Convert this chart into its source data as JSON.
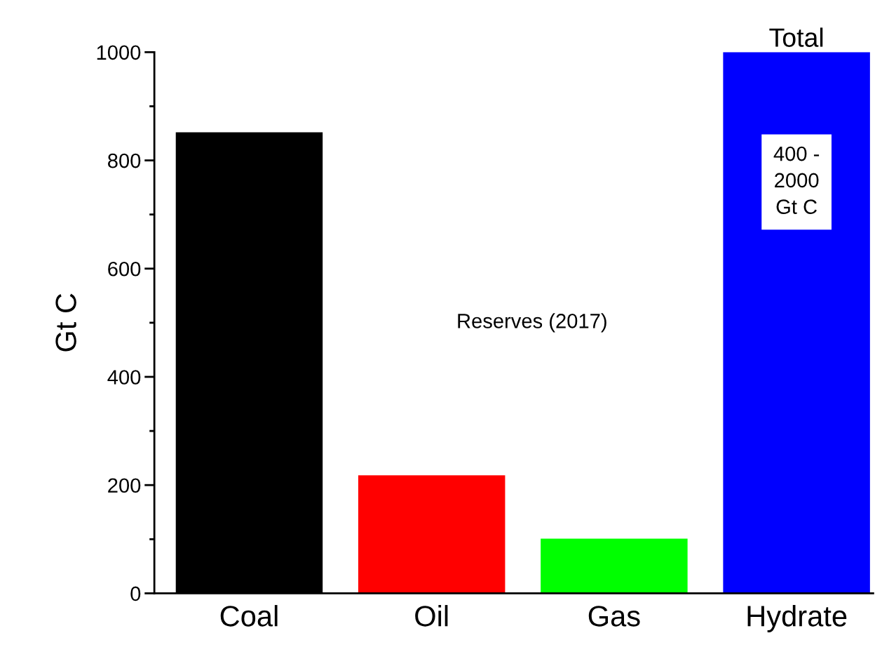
{
  "chart_data": {
    "type": "bar",
    "ylabel": "Gt C",
    "categories": [
      "Coal",
      "Oil",
      "Gas",
      "Hydrate"
    ],
    "values": [
      852,
      218,
      101,
      1000
    ],
    "colors": [
      "#000000",
      "#ff0000",
      "#00ff00",
      "#0000ff"
    ],
    "ylim": [
      0,
      1000
    ],
    "yticks": [
      0,
      200,
      400,
      600,
      800,
      1000
    ],
    "grid": false,
    "annotations": [
      "Reserves (2017)",
      {
        "text": "Total",
        "x": "Hydrate",
        "y": 1000
      },
      "400 -\n2000\nGt C"
    ]
  }
}
